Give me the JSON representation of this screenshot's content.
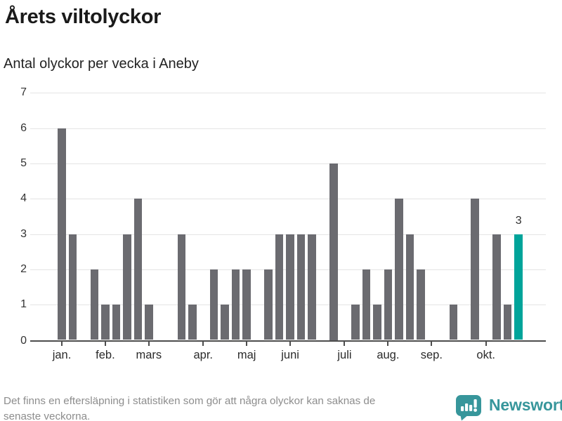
{
  "header": {
    "title": "Årets viltolyckor",
    "subtitle": "Antal olyckor per vecka i Aneby"
  },
  "chart_data": {
    "type": "bar",
    "title": "Årets viltolyckor",
    "subtitle": "Antal olyckor per vecka i Aneby",
    "x_unit": "vecka",
    "months_shown": "januari till oktober",
    "ylim": [
      0,
      7
    ],
    "yticks": [
      0,
      1,
      2,
      3,
      4,
      5,
      6,
      7
    ],
    "grid": "horizontal",
    "values": [
      6,
      3,
      0,
      2,
      1,
      1,
      3,
      4,
      1,
      0,
      0,
      3,
      1,
      0,
      2,
      1,
      2,
      2,
      0,
      2,
      3,
      3,
      3,
      3,
      0,
      5,
      0,
      1,
      2,
      1,
      2,
      4,
      3,
      2,
      0,
      0,
      1,
      0,
      4,
      0,
      3,
      1,
      3
    ],
    "month_ticks": [
      {
        "label": "jan.",
        "week": 1
      },
      {
        "label": "feb.",
        "week": 5
      },
      {
        "label": "mars",
        "week": 9
      },
      {
        "label": "apr.",
        "week": 14
      },
      {
        "label": "maj",
        "week": 18
      },
      {
        "label": "juni",
        "week": 22
      },
      {
        "label": "juli",
        "week": 27
      },
      {
        "label": "aug.",
        "week": 31
      },
      {
        "label": "sep.",
        "week": 35
      },
      {
        "label": "okt.",
        "week": 40
      }
    ],
    "highlight_last": true,
    "last_value_label": "3",
    "colors": {
      "bar": "#6b6b70",
      "highlight": "#00a49a",
      "grid": "#e4e4e4",
      "axis": "#4d4d4d",
      "tick_label": "#333333"
    }
  },
  "footer": {
    "note_lines": [
      "Det finns en eftersläpning i statistiken som gör att några olyckor kan saknas de",
      "senaste veckorna."
    ],
    "brand": "Newsworthy"
  }
}
